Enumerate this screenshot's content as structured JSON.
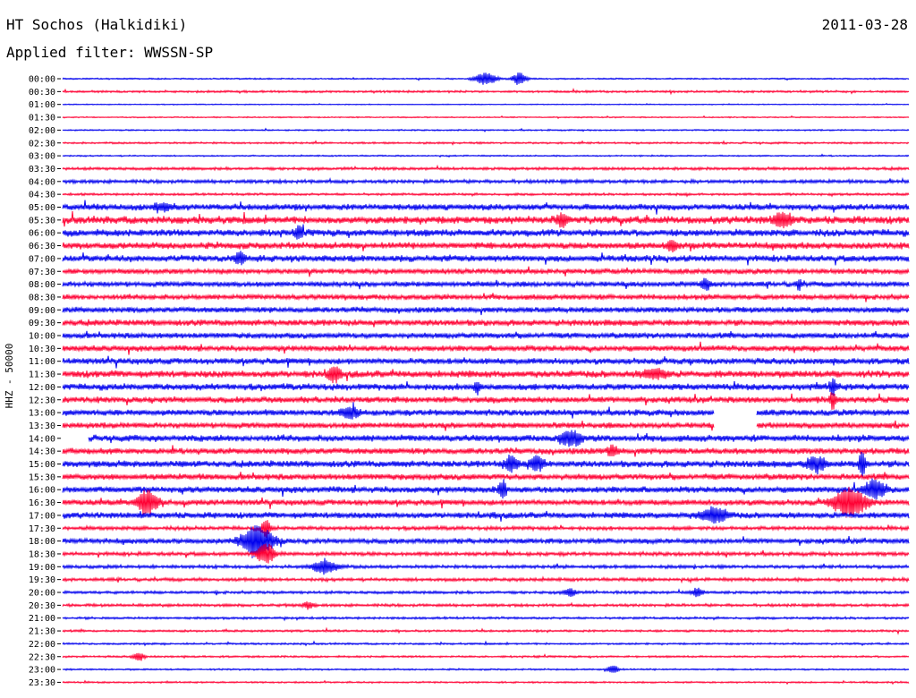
{
  "header": {
    "station": "HT Sochos (Halkidiki)",
    "date": "2011-03-28",
    "filter": "Applied filter: WWSSN-SP"
  },
  "chart_data": {
    "type": "line",
    "title": "HT Sochos (Halkidiki)",
    "subtitle": "Applied filter: WWSSN-SP",
    "ylabel": "HHZ - 50000",
    "xlabel": "",
    "row_labels": [
      "00:00",
      "00:30",
      "01:00",
      "01:30",
      "02:00",
      "02:30",
      "03:00",
      "03:30",
      "04:00",
      "04:30",
      "05:00",
      "05:30",
      "06:00",
      "06:30",
      "07:00",
      "07:30",
      "08:00",
      "08:30",
      "09:00",
      "09:30",
      "10:00",
      "10:30",
      "11:00",
      "11:30",
      "12:00",
      "12:30",
      "13:00",
      "13:30",
      "14:00",
      "14:30",
      "15:00",
      "15:30",
      "16:00",
      "16:30",
      "17:00",
      "17:30",
      "18:00",
      "18:30",
      "19:00",
      "19:30",
      "20:00",
      "20:30",
      "21:00",
      "21:30",
      "22:00",
      "22:30",
      "23:00",
      "23:30"
    ],
    "row_noise": [
      0.6,
      0.9,
      0.4,
      0.5,
      0.6,
      0.8,
      0.6,
      1.2,
      1.5,
      1.0,
      2.6,
      3.2,
      3.0,
      2.8,
      2.8,
      2.2,
      2.2,
      2.2,
      2.4,
      2.6,
      2.4,
      2.4,
      2.6,
      3.0,
      2.8,
      2.6,
      2.6,
      2.4,
      2.8,
      2.6,
      2.8,
      2.6,
      2.6,
      2.4,
      2.6,
      1.6,
      2.2,
      1.6,
      1.4,
      1.4,
      1.2,
      1.2,
      1.0,
      0.9,
      0.8,
      0.8,
      0.7,
      0.7
    ],
    "gaps": [
      {
        "row": 26,
        "x_start": 0.77,
        "x_end": 0.82
      },
      {
        "row": 27,
        "x_start": 0.77,
        "x_end": 0.82
      },
      {
        "row": 28,
        "x_start": 0.0,
        "x_end": 0.03
      }
    ],
    "events": [
      {
        "row": 0,
        "x": 0.5,
        "amp": 7,
        "width": 0.012
      },
      {
        "row": 0,
        "x": 0.54,
        "amp": 7,
        "width": 0.008
      },
      {
        "row": 10,
        "x": 0.12,
        "amp": 4,
        "width": 0.01
      },
      {
        "row": 11,
        "x": 0.59,
        "amp": 6,
        "width": 0.006
      },
      {
        "row": 11,
        "x": 0.85,
        "amp": 7,
        "width": 0.01
      },
      {
        "row": 12,
        "x": 0.28,
        "amp": 6,
        "width": 0.004
      },
      {
        "row": 13,
        "x": 0.72,
        "amp": 5,
        "width": 0.006
      },
      {
        "row": 14,
        "x": 0.21,
        "amp": 6,
        "width": 0.006
      },
      {
        "row": 16,
        "x": 0.76,
        "amp": 7,
        "width": 0.005
      },
      {
        "row": 16,
        "x": 0.87,
        "amp": 6,
        "width": 0.003
      },
      {
        "row": 23,
        "x": 0.32,
        "amp": 9,
        "width": 0.006
      },
      {
        "row": 23,
        "x": 0.7,
        "amp": 5,
        "width": 0.012
      },
      {
        "row": 24,
        "x": 0.49,
        "amp": 6,
        "width": 0.004
      },
      {
        "row": 24,
        "x": 0.91,
        "amp": 8,
        "width": 0.004
      },
      {
        "row": 25,
        "x": 0.91,
        "amp": 8,
        "width": 0.004
      },
      {
        "row": 26,
        "x": 0.34,
        "amp": 6,
        "width": 0.01
      },
      {
        "row": 28,
        "x": 0.6,
        "amp": 8,
        "width": 0.012
      },
      {
        "row": 29,
        "x": 0.65,
        "amp": 6,
        "width": 0.006
      },
      {
        "row": 30,
        "x": 0.53,
        "amp": 8,
        "width": 0.008
      },
      {
        "row": 30,
        "x": 0.56,
        "amp": 8,
        "width": 0.008
      },
      {
        "row": 30,
        "x": 0.89,
        "amp": 9,
        "width": 0.01
      },
      {
        "row": 30,
        "x": 0.945,
        "amp": 14,
        "width": 0.004
      },
      {
        "row": 32,
        "x": 0.52,
        "amp": 12,
        "width": 0.004
      },
      {
        "row": 32,
        "x": 0.96,
        "amp": 10,
        "width": 0.012
      },
      {
        "row": 33,
        "x": 0.1,
        "amp": 13,
        "width": 0.012
      },
      {
        "row": 33,
        "x": 0.93,
        "amp": 16,
        "width": 0.018
      },
      {
        "row": 34,
        "x": 0.77,
        "amp": 8,
        "width": 0.015
      },
      {
        "row": 35,
        "x": 0.24,
        "amp": 10,
        "width": 0.005
      },
      {
        "row": 36,
        "x": 0.23,
        "amp": 18,
        "width": 0.018
      },
      {
        "row": 37,
        "x": 0.24,
        "amp": 12,
        "width": 0.01
      },
      {
        "row": 38,
        "x": 0.31,
        "amp": 8,
        "width": 0.014
      },
      {
        "row": 40,
        "x": 0.6,
        "amp": 5,
        "width": 0.006
      },
      {
        "row": 40,
        "x": 0.75,
        "amp": 5,
        "width": 0.006
      },
      {
        "row": 41,
        "x": 0.29,
        "amp": 4,
        "width": 0.006
      },
      {
        "row": 45,
        "x": 0.09,
        "amp": 5,
        "width": 0.006
      },
      {
        "row": 46,
        "x": 0.65,
        "amp": 5,
        "width": 0.006
      }
    ],
    "colors": {
      "odd": "#ff0033",
      "even": "#0000ee"
    },
    "grid": false
  }
}
